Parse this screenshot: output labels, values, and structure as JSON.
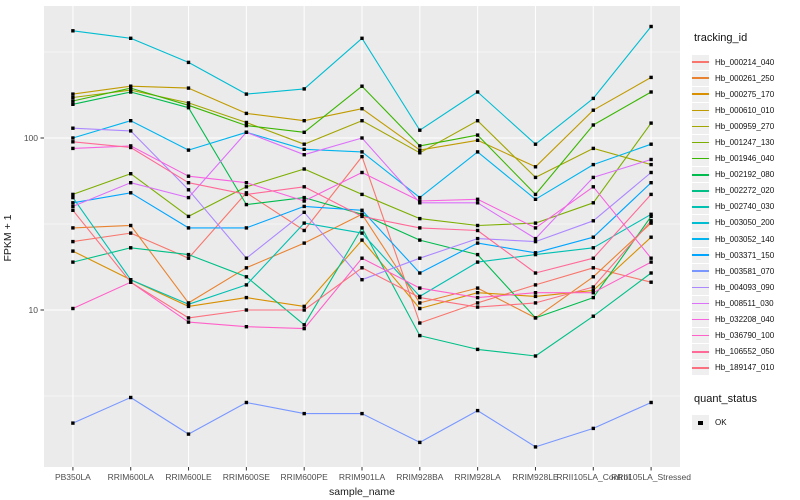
{
  "chart_data": {
    "type": "line",
    "title": "",
    "xlabel": "sample_name",
    "ylabel": "FPKM + 1",
    "y_scale": "log10",
    "y_ticks": [
      100,
      10
    ],
    "ylim": [
      1.2,
      590
    ],
    "grid": true,
    "panel_bg": "#EBEBEB",
    "grid_color": "#FFFFFF",
    "marker": "black-square",
    "legend_position": "right",
    "legend_title": "tracking_id",
    "legend2_title": "quant_status",
    "legend2_items": [
      "OK"
    ],
    "categories": [
      "PB350LA",
      "RRIM600LA",
      "RRIM600LE",
      "RRIM600SE",
      "RRIM600PE",
      "RRIM901LA",
      "RRIM928BA",
      "RRIM928LA",
      "RRIM928LE",
      "RRII105LA_Control",
      "RRII105LA_Stressed"
    ],
    "series": [
      {
        "name": "Hb_000214_040",
        "color": "#F8766D",
        "values": [
          25,
          28,
          20,
          48,
          29,
          78,
          8.4,
          11,
          14,
          17.6,
          14.5
        ]
      },
      {
        "name": "Hb_000261_250",
        "color": "#EA8331",
        "values": [
          30,
          31,
          11,
          17.6,
          24.5,
          36,
          11,
          13.4,
          9,
          15.6,
          32
        ]
      },
      {
        "name": "Hb_000275_170",
        "color": "#D89000",
        "values": [
          22,
          15,
          10.5,
          11.8,
          10.5,
          25.5,
          10.2,
          12.6,
          12,
          13,
          26.5
        ]
      },
      {
        "name": "Hb_000610_010",
        "color": "#C09B00",
        "values": [
          180,
          200,
          195,
          139,
          126,
          148,
          85,
          97,
          68,
          145,
          225
        ]
      },
      {
        "name": "Hb_000959_270",
        "color": "#A3A500",
        "values": [
          172,
          190,
          160,
          123,
          92,
          126,
          82,
          126,
          59,
          87,
          70
        ]
      },
      {
        "name": "Hb_001247_130",
        "color": "#7CAE00",
        "values": [
          47,
          62,
          35,
          52,
          66,
          47,
          34,
          31,
          32,
          42,
          122
        ]
      },
      {
        "name": "Hb_001946_040",
        "color": "#39B600",
        "values": [
          164,
          195,
          155,
          118,
          108,
          200,
          90,
          104,
          47,
          119,
          185
        ]
      },
      {
        "name": "Hb_002192_080",
        "color": "#00BB4E",
        "values": [
          157,
          185,
          150,
          41,
          45,
          36,
          25.5,
          21,
          9,
          11.8,
          35
        ]
      },
      {
        "name": "Hb_002272_020",
        "color": "#00C087",
        "values": [
          19,
          23,
          21,
          15.6,
          8.2,
          30,
          7.1,
          5.9,
          5.4,
          9.2,
          16.4
        ]
      },
      {
        "name": "Hb_002740_030",
        "color": "#00C0B2",
        "values": [
          45,
          15,
          10.8,
          14,
          32,
          28,
          12,
          19,
          21,
          23,
          36
        ]
      },
      {
        "name": "Hb_003050_200",
        "color": "#00BDD2",
        "values": [
          420,
          380,
          275,
          180,
          193,
          380,
          111,
          185,
          92,
          170,
          445
        ]
      },
      {
        "name": "Hb_003052_140",
        "color": "#00B4EF",
        "values": [
          100,
          126,
          85,
          108,
          86,
          83,
          45,
          83,
          44,
          70,
          92
        ]
      },
      {
        "name": "Hb_003371_150",
        "color": "#00A5FF",
        "values": [
          42,
          48,
          30,
          30,
          40,
          38,
          16.4,
          24.5,
          21.5,
          26.5,
          55
        ]
      },
      {
        "name": "Hb_003581_070",
        "color": "#7997FF",
        "values": [
          2.2,
          3.1,
          1.9,
          2.9,
          2.5,
          2.5,
          1.7,
          2.6,
          1.6,
          2.05,
          2.9
        ]
      },
      {
        "name": "Hb_004093_090",
        "color": "#AC88FF",
        "values": [
          114,
          110,
          50,
          20,
          37,
          15,
          20,
          26,
          25,
          33,
          63
        ]
      },
      {
        "name": "Hb_008511_030",
        "color": "#DC71FA",
        "values": [
          40,
          55,
          45,
          108,
          80,
          100,
          42,
          42,
          26,
          59,
          75
        ]
      },
      {
        "name": "Hb_032208_040",
        "color": "#F763E0",
        "values": [
          87,
          90,
          60,
          55,
          43,
          63,
          43,
          44,
          30,
          52,
          20
        ]
      },
      {
        "name": "Hb_036790_100",
        "color": "#FF61C9",
        "values": [
          10.2,
          14.5,
          8.5,
          8,
          7.8,
          20,
          13.4,
          11.8,
          12.6,
          12.6,
          19
        ]
      },
      {
        "name": "Hb_106552_050",
        "color": "#FF6A98",
        "values": [
          95,
          88,
          55,
          47,
          52,
          35,
          30,
          29,
          16.4,
          20,
          47
        ]
      },
      {
        "name": "Hb_189147_010",
        "color": "#FC717F",
        "values": [
          38,
          14.5,
          9,
          10,
          10,
          17.6,
          11.8,
          10.4,
          11,
          13.6,
          33
        ]
      }
    ]
  }
}
